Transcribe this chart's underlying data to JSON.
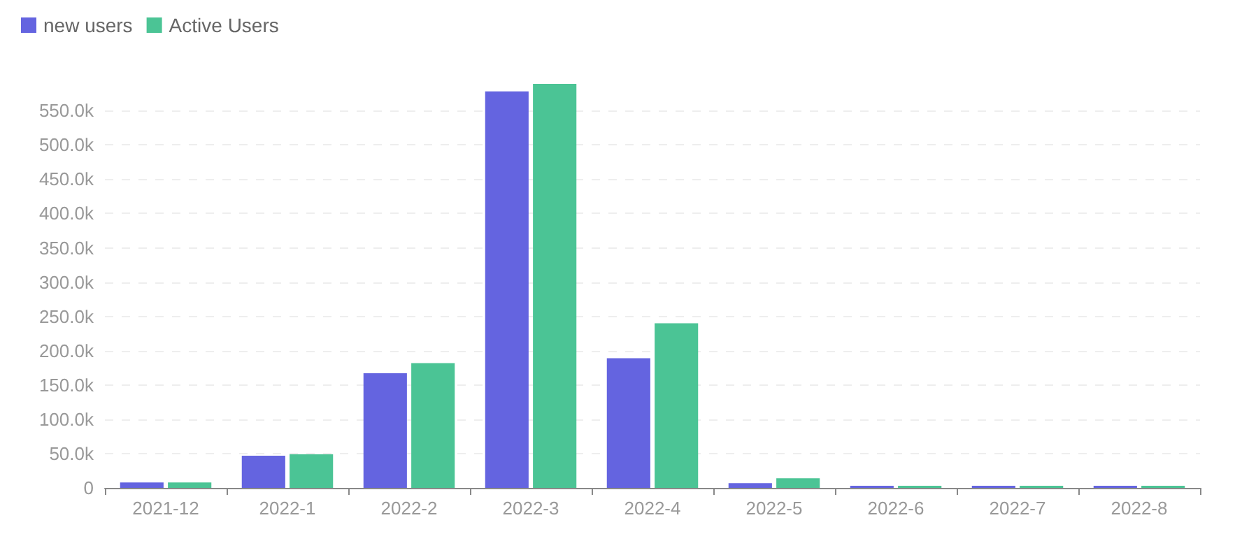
{
  "chart_data": {
    "type": "bar",
    "categories": [
      "2021-12",
      "2022-1",
      "2022-2",
      "2022-3",
      "2022-4",
      "2022-5",
      "2022-6",
      "2022-7",
      "2022-8"
    ],
    "series": [
      {
        "name": "new users",
        "color": "#6464e0",
        "values": [
          8000,
          47000,
          167000,
          578000,
          189000,
          7000,
          3000,
          3000,
          3000
        ]
      },
      {
        "name": "Active Users",
        "color": "#4bc495",
        "values": [
          8000,
          49000,
          182000,
          589000,
          240000,
          14000,
          3000,
          3000,
          3000
        ]
      }
    ],
    "ylim": [
      0,
      589000
    ],
    "yticks": [
      {
        "value": 0,
        "label": "0"
      },
      {
        "value": 50000,
        "label": "50.0k"
      },
      {
        "value": 100000,
        "label": "100.0k"
      },
      {
        "value": 150000,
        "label": "150.0k"
      },
      {
        "value": 200000,
        "label": "200.0k"
      },
      {
        "value": 250000,
        "label": "250.0k"
      },
      {
        "value": 300000,
        "label": "300.0k"
      },
      {
        "value": 350000,
        "label": "350.0k"
      },
      {
        "value": 400000,
        "label": "400.0k"
      },
      {
        "value": 450000,
        "label": "450.0k"
      },
      {
        "value": 500000,
        "label": "500.0k"
      },
      {
        "value": 550000,
        "label": "550.0k"
      }
    ],
    "grid": "y",
    "legend": "top left"
  }
}
